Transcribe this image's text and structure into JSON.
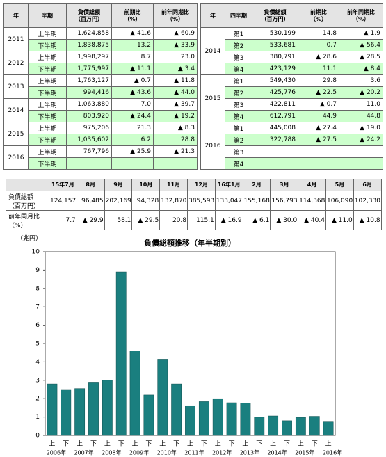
{
  "left_table": {
    "header": [
      [
        "年"
      ],
      [
        "半期"
      ],
      [
        "負債総額",
        "（百万円）"
      ],
      [
        "前期比",
        "（%）"
      ],
      [
        "前年同期比",
        "（%）"
      ]
    ],
    "groups": [
      {
        "year": "2011",
        "rows": [
          [
            "上半期",
            "1,624,858",
            "▲ 41.6",
            "▲ 60.9"
          ],
          [
            "下半期",
            "1,838,875",
            "13.2",
            "▲ 33.9"
          ]
        ]
      },
      {
        "year": "2012",
        "rows": [
          [
            "上半期",
            "1,998,297",
            "8.7",
            "23.0"
          ],
          [
            "下半期",
            "1,775,997",
            "▲ 11.1",
            "▲ 3.4"
          ]
        ]
      },
      {
        "year": "2013",
        "rows": [
          [
            "上半期",
            "1,763,127",
            "▲ 0.7",
            "▲ 11.8"
          ],
          [
            "下半期",
            "994,416",
            "▲ 43.6",
            "▲ 44.0"
          ]
        ]
      },
      {
        "year": "2014",
        "rows": [
          [
            "上半期",
            "1,063,880",
            "7.0",
            "▲ 39.7"
          ],
          [
            "下半期",
            "803,920",
            "▲ 24.4",
            "▲ 19.2"
          ]
        ]
      },
      {
        "year": "2015",
        "rows": [
          [
            "上半期",
            "975,206",
            "21.3",
            "▲ 8.3"
          ],
          [
            "下半期",
            "1,035,602",
            "6.2",
            "28.8"
          ]
        ]
      },
      {
        "year": "2016",
        "rows": [
          [
            "上半期",
            "767,796",
            "▲ 25.9",
            "▲ 21.3"
          ],
          [
            "下半期"
          ]
        ]
      }
    ]
  },
  "right_table": {
    "header": [
      [
        "年"
      ],
      [
        "四半期"
      ],
      [
        "負債総額",
        "（百万円）"
      ],
      [
        "前期比",
        "（%）"
      ],
      [
        "前年同期比",
        "（%）"
      ]
    ],
    "groups": [
      {
        "year": "2014",
        "rows": [
          [
            "第1",
            "530,199",
            "14.8",
            "▲ 1.9"
          ],
          [
            "第2",
            "533,681",
            "0.7",
            "▲ 56.4"
          ],
          [
            "第3",
            "380,791",
            "▲ 28.6",
            "▲ 28.5"
          ],
          [
            "第4",
            "423,129",
            "11.1",
            "▲ 8.4"
          ]
        ]
      },
      {
        "year": "2015",
        "rows": [
          [
            "第1",
            "549,430",
            "29.8",
            "3.6"
          ],
          [
            "第2",
            "425,776",
            "▲ 22.5",
            "▲ 20.2"
          ],
          [
            "第3",
            "422,811",
            "▲ 0.7",
            "11.0"
          ],
          [
            "第4",
            "612,791",
            "44.9",
            "44.8"
          ]
        ]
      },
      {
        "year": "2016",
        "rows": [
          [
            "第1",
            "445,008",
            "▲ 27.4",
            "▲ 19.0"
          ],
          [
            "第2",
            "322,788",
            "▲ 27.5",
            "▲ 24.2"
          ],
          [
            "第3"
          ],
          [
            "第4"
          ]
        ]
      }
    ]
  },
  "monthly_table": {
    "header": [
      "15年7月",
      "8月",
      "9月",
      "10月",
      "11月",
      "12月",
      "16年1月",
      "2月",
      "3月",
      "4月",
      "5月",
      "6月"
    ],
    "rows": [
      {
        "label": [
          "負債総額",
          "（百万円）"
        ],
        "cells": [
          "124,157",
          "96,485",
          "202,169",
          "94,328",
          "132,870",
          "385,593",
          "133,047",
          "155,168",
          "156,793",
          "114,368",
          "106,090",
          "102,330"
        ]
      },
      {
        "label": [
          "前年同月比",
          "（%）"
        ],
        "cells": [
          "7.7",
          "▲ 29.9",
          "58.1",
          "▲ 29.5",
          "20.8",
          "115.1",
          "▲ 16.9",
          "▲ 6.1",
          "▲ 30.0",
          "▲ 40.4",
          "▲ 11.0",
          "▲ 10.8"
        ]
      }
    ]
  },
  "chart_data": {
    "type": "bar",
    "title": "負債総額推移（年半期別）",
    "unit_label": "（兆円）",
    "categories": [
      "上",
      "下",
      "上",
      "下",
      "上",
      "下",
      "上",
      "下",
      "上",
      "下",
      "上",
      "下",
      "上",
      "下",
      "上",
      "下",
      "上",
      "下",
      "上",
      "下",
      "上"
    ],
    "year_labels": [
      "2006年",
      "2007年",
      "2008年",
      "2009年",
      "2010年",
      "2011年",
      "2012年",
      "2013年",
      "2014年",
      "2015年",
      "2016年"
    ],
    "values": [
      2.8,
      2.5,
      2.55,
      2.9,
      3.0,
      8.9,
      4.6,
      2.2,
      4.15,
      2.8,
      1.62,
      1.84,
      2.0,
      1.78,
      1.76,
      0.99,
      1.06,
      0.8,
      0.98,
      1.04,
      0.77
    ],
    "color": "#1a7f7f",
    "ylim": [
      0,
      10
    ],
    "yticks": [
      0,
      1,
      2,
      3,
      4,
      5,
      6,
      7,
      8,
      9,
      10
    ]
  }
}
